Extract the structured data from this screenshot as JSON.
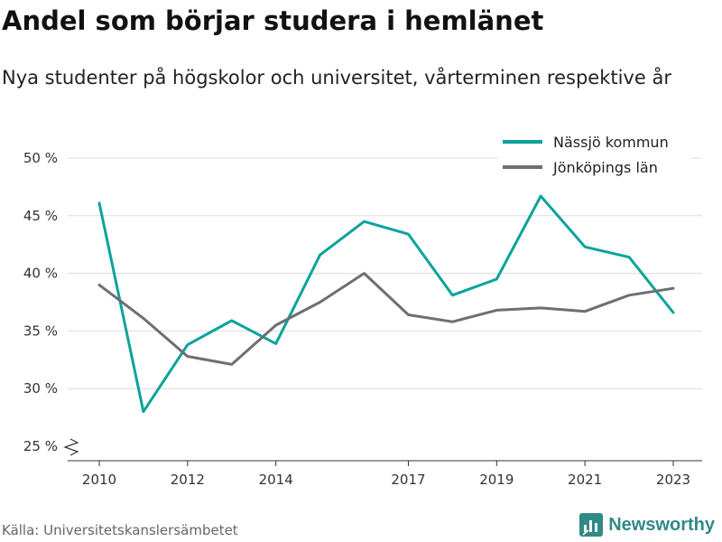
{
  "header": {
    "title": "Andel som börjar studera i hemlänet",
    "subtitle": "Nya studenter på högskolor och universitet, vårterminen respektive år"
  },
  "footer": {
    "source": "Källa: Universitetskanslersämbetet",
    "brand": "Newsworthy",
    "brand_icon": "newsworthy-logo-icon"
  },
  "chart_data": {
    "type": "line",
    "title": "Andel som börjar studera i hemlänet",
    "subtitle": "Nya studenter på högskolor och universitet, vårterminen respektive år",
    "x": [
      2010,
      2011,
      2012,
      2013,
      2014,
      2015,
      2016,
      2017,
      2018,
      2019,
      2020,
      2021,
      2022,
      2023
    ],
    "x_tick_labels": [
      "2010",
      "2012",
      "2014",
      "2017",
      "2019",
      "2021",
      "2023"
    ],
    "y_tick_labels": [
      "25 %",
      "30 %",
      "35 %",
      "40 %",
      "45 %",
      "50 %"
    ],
    "ylim": [
      25,
      50
    ],
    "y_axis_break": true,
    "grid": true,
    "legend_position": "top-right",
    "series": [
      {
        "name": "Nässjö kommun",
        "color": "#0aa39a",
        "values": [
          46.1,
          28.0,
          33.8,
          35.9,
          33.9,
          41.6,
          44.5,
          43.4,
          38.1,
          39.5,
          46.7,
          42.3,
          41.4,
          36.6
        ]
      },
      {
        "name": "Jönköpings län",
        "color": "#6e6e73",
        "values": [
          39.0,
          36.1,
          32.8,
          32.1,
          35.5,
          37.5,
          40.0,
          36.4,
          35.8,
          36.8,
          37.0,
          36.7,
          38.1,
          38.7
        ]
      }
    ]
  }
}
